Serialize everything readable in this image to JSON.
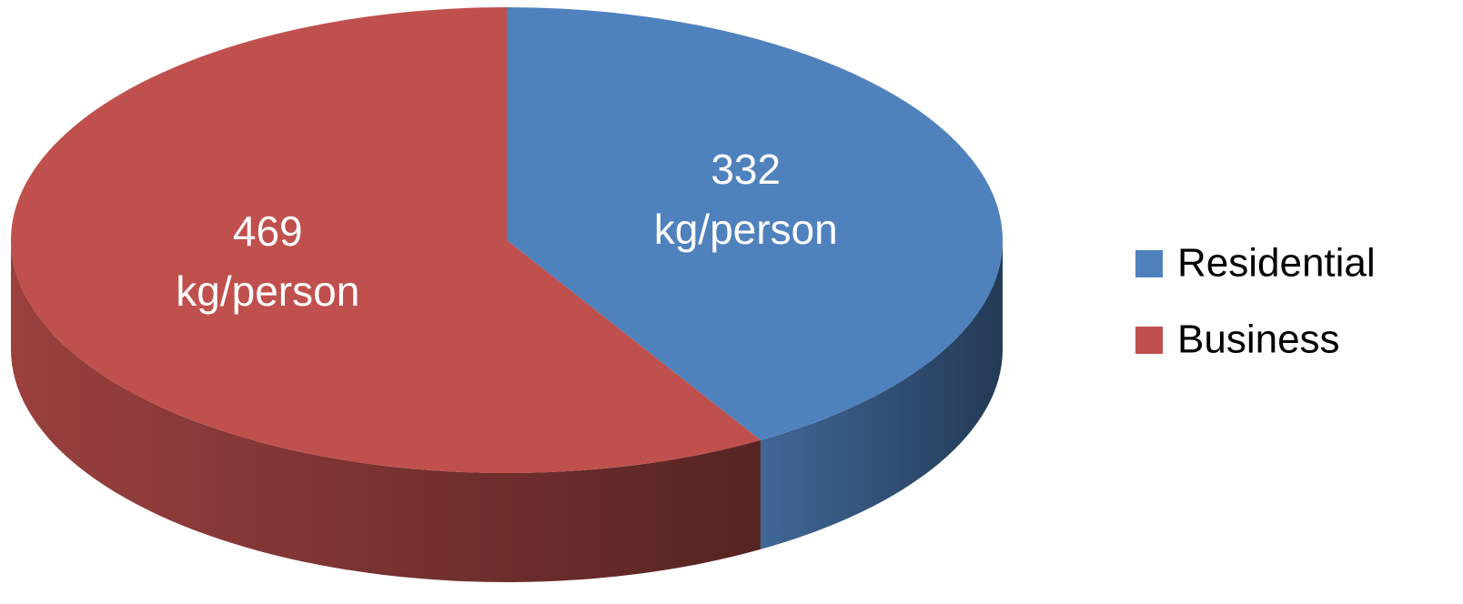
{
  "chart_data": {
    "type": "pie",
    "categories": [
      "Residential",
      "Business"
    ],
    "values": [
      332,
      469
    ],
    "value_labels": [
      "332 kg/person",
      "469 kg/person"
    ],
    "colors": [
      "#4f81bd",
      "#c0504d"
    ],
    "legend": "right"
  }
}
